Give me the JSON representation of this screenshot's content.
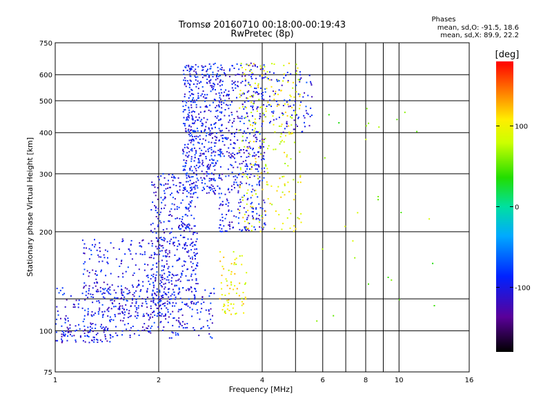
{
  "chart_data": {
    "type": "scatter",
    "title": "Tromsø 20160710 00:18:00-00:19:43",
    "subtitle": "RwPretec (8p)",
    "xlabel": "Frequency [MHz]",
    "ylabel": "Stationary phase Virtual Height [km]",
    "x_scale": "log",
    "y_scale": "log",
    "xlim": [
      1,
      16
    ],
    "ylim": [
      75,
      750
    ],
    "x_ticks": [
      {
        "value": 1,
        "label": "1"
      },
      {
        "value": 2,
        "label": "2"
      },
      {
        "value": 4,
        "label": "4"
      },
      {
        "value": 6,
        "label": "6"
      },
      {
        "value": 8,
        "label": "8"
      },
      {
        "value": 10,
        "label": "10"
      },
      {
        "value": 16,
        "label": "16"
      }
    ],
    "x_minor_grid": [
      5,
      7,
      9
    ],
    "y_ticks": [
      {
        "value": 75,
        "label": "75"
      },
      {
        "value": 100,
        "label": "100"
      },
      {
        "value": 200,
        "label": "200"
      },
      {
        "value": 300,
        "label": "300"
      },
      {
        "value": 400,
        "label": "400"
      },
      {
        "value": 500,
        "label": "500"
      },
      {
        "value": 600,
        "label": "600"
      },
      {
        "value": 750,
        "label": "750"
      }
    ],
    "y_grid": [
      100,
      125,
      200,
      300,
      400,
      500,
      600
    ],
    "grid": true,
    "legend": {
      "heading": "Phases",
      "lines": [
        "mean, sd,O: -91.5, 18.6",
        "mean, sd,X:  89.9, 22.2"
      ],
      "placement": "top-right"
    },
    "colorbar": {
      "label": "[deg]",
      "range": [
        -180,
        180
      ],
      "ticks": [
        {
          "value": 100,
          "label": "100"
        },
        {
          "value": 0,
          "label": "0"
        },
        {
          "value": -100,
          "label": "-100"
        }
      ],
      "colormap": "rainbow (black-purple-blue-cyan-green-yellow-red)"
    },
    "point_clusters": [
      {
        "name": "E-layer trace",
        "x_range": [
          1.0,
          2.9
        ],
        "y_range": [
          95,
          135
        ],
        "phase": -100,
        "count": 320
      },
      {
        "name": "E-layer low cluster",
        "x_range": [
          1.0,
          1.45
        ],
        "y_range": [
          92,
          102
        ],
        "phase": -105,
        "count": 70
      },
      {
        "name": "F1 lower rise",
        "x_range": [
          1.2,
          2.1
        ],
        "y_range": [
          110,
          190
        ],
        "phase": -100,
        "count": 260
      },
      {
        "name": "F1 rise",
        "x_range": [
          1.9,
          2.6
        ],
        "y_range": [
          120,
          300
        ],
        "phase": -98,
        "count": 420
      },
      {
        "name": "F2 ordinary dense",
        "x_range": [
          2.35,
          3.05
        ],
        "y_range": [
          260,
          650
        ],
        "phase": -95,
        "count": 520
      },
      {
        "name": "F2 ordinary upper",
        "x_range": [
          3.0,
          4.1
        ],
        "y_range": [
          200,
          650
        ],
        "phase": -100,
        "count": 480
      },
      {
        "name": "F2 extraordinary",
        "x_range": [
          3.4,
          5.2
        ],
        "y_range": [
          200,
          650
        ],
        "phase": 95,
        "count": 240
      },
      {
        "name": "X low trace",
        "x_range": [
          3.0,
          3.6
        ],
        "y_range": [
          112,
          175
        ],
        "phase": 100,
        "count": 70
      },
      {
        "name": "O upper right",
        "x_range": [
          4.1,
          5.6
        ],
        "y_range": [
          400,
          620
        ],
        "phase": -95,
        "count": 90
      },
      {
        "name": "sparse right",
        "x_range": [
          5.5,
          13
        ],
        "y_range": [
          95,
          620
        ],
        "phase": 60,
        "count": 28
      }
    ]
  }
}
